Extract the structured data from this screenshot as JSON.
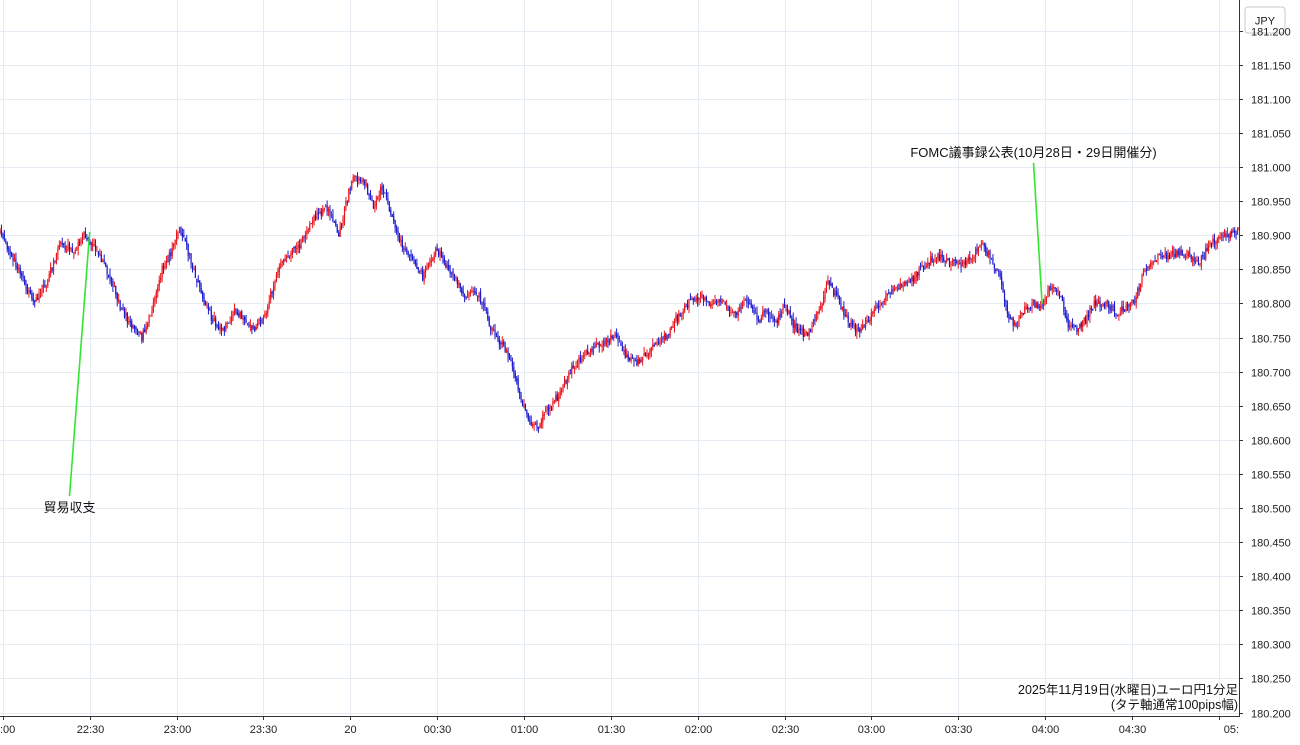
{
  "chart_data": {
    "type": "candlestick",
    "currency_label": "JPY",
    "caption_line1": "2025年11月19日(水曜日)ユーロ円1分足",
    "caption_line2": "(タテ軸通常100pips幅)",
    "ylim": [
      180.195,
      181.245
    ],
    "y_ticks": [
      181.2,
      181.15,
      181.1,
      181.05,
      181.0,
      180.95,
      180.9,
      180.85,
      180.8,
      180.75,
      180.7,
      180.65,
      180.6,
      180.55,
      180.5,
      180.45,
      180.4,
      180.35,
      180.3,
      180.25,
      180.2
    ],
    "x_range_minutes": [
      -31,
      397
    ],
    "x_ticks": [
      {
        "label": ":00",
        "minute": -30
      },
      {
        "label": "22:30",
        "minute": 0
      },
      {
        "label": "23:00",
        "minute": 30
      },
      {
        "label": "23:30",
        "minute": 60
      },
      {
        "label": "20",
        "minute": 90
      },
      {
        "label": "00:30",
        "minute": 120
      },
      {
        "label": "01:00",
        "minute": 150
      },
      {
        "label": "01:30",
        "minute": 180
      },
      {
        "label": "02:00",
        "minute": 210
      },
      {
        "label": "02:30",
        "minute": 240
      },
      {
        "label": "03:00",
        "minute": 270
      },
      {
        "label": "03:30",
        "minute": 300
      },
      {
        "label": "04:00",
        "minute": 330
      },
      {
        "label": "04:30",
        "minute": 360
      },
      {
        "label": "05:",
        "minute": 390
      }
    ],
    "colors": {
      "up": "#e8141c",
      "down": "#1a1acc",
      "grid": "#e4ebf2",
      "axis": "#333333",
      "annotation_line": "#33e633"
    },
    "annotations": [
      {
        "label": "貿易収支",
        "minute": 0,
        "price": 180.905,
        "label_price": 180.5,
        "label_minute": -7
      },
      {
        "label": "FOMC議事録公表(10月28日・29日開催分)",
        "minute": 329,
        "price": 180.8,
        "label_price": 181.015,
        "label_minute": 326
      }
    ],
    "close_waypoints": [
      [
        -31,
        180.905
      ],
      [
        -27,
        180.87
      ],
      [
        -23,
        180.835
      ],
      [
        -19,
        180.8
      ],
      [
        -15,
        180.83
      ],
      [
        -10,
        180.89
      ],
      [
        -6,
        180.875
      ],
      [
        -2,
        180.9
      ],
      [
        0,
        180.895
      ],
      [
        3,
        180.875
      ],
      [
        7,
        180.84
      ],
      [
        10,
        180.8
      ],
      [
        14,
        180.77
      ],
      [
        18,
        180.75
      ],
      [
        22,
        180.8
      ],
      [
        25,
        180.85
      ],
      [
        28,
        180.875
      ],
      [
        31,
        180.91
      ],
      [
        34,
        180.875
      ],
      [
        38,
        180.82
      ],
      [
        42,
        180.78
      ],
      [
        46,
        180.76
      ],
      [
        50,
        180.79
      ],
      [
        54,
        180.775
      ],
      [
        57,
        180.76
      ],
      [
        61,
        180.79
      ],
      [
        64,
        180.835
      ],
      [
        67,
        180.865
      ],
      [
        70,
        180.875
      ],
      [
        73,
        180.89
      ],
      [
        77,
        180.925
      ],
      [
        82,
        180.94
      ],
      [
        86,
        180.9
      ],
      [
        89,
        180.955
      ],
      [
        91,
        180.985
      ],
      [
        95,
        180.975
      ],
      [
        98,
        180.94
      ],
      [
        101,
        180.97
      ],
      [
        104,
        180.93
      ],
      [
        108,
        180.885
      ],
      [
        112,
        180.86
      ],
      [
        115,
        180.84
      ],
      [
        120,
        180.88
      ],
      [
        123,
        180.855
      ],
      [
        126,
        180.84
      ],
      [
        130,
        180.805
      ],
      [
        133,
        180.82
      ],
      [
        136,
        180.8
      ],
      [
        139,
        180.76
      ],
      [
        143,
        180.735
      ],
      [
        146,
        180.71
      ],
      [
        149,
        180.66
      ],
      [
        152,
        180.625
      ],
      [
        155,
        180.62
      ],
      [
        158,
        180.645
      ],
      [
        162,
        180.665
      ],
      [
        166,
        180.7
      ],
      [
        170,
        180.72
      ],
      [
        174,
        180.735
      ],
      [
        178,
        180.745
      ],
      [
        182,
        180.755
      ],
      [
        185,
        180.725
      ],
      [
        189,
        180.71
      ],
      [
        193,
        180.73
      ],
      [
        198,
        180.745
      ],
      [
        203,
        180.78
      ],
      [
        207,
        180.8
      ],
      [
        211,
        180.81
      ],
      [
        215,
        180.8
      ],
      [
        219,
        180.8
      ],
      [
        223,
        180.785
      ],
      [
        227,
        180.805
      ],
      [
        231,
        180.775
      ],
      [
        234,
        180.79
      ],
      [
        237,
        180.77
      ],
      [
        240,
        180.8
      ],
      [
        244,
        180.76
      ],
      [
        248,
        180.755
      ],
      [
        252,
        180.79
      ],
      [
        255,
        180.83
      ],
      [
        258,
        180.81
      ],
      [
        261,
        180.78
      ],
      [
        265,
        180.76
      ],
      [
        268,
        180.77
      ],
      [
        271,
        180.79
      ],
      [
        274,
        180.8
      ],
      [
        277,
        180.82
      ],
      [
        281,
        180.825
      ],
      [
        285,
        180.84
      ],
      [
        289,
        180.86
      ],
      [
        293,
        180.87
      ],
      [
        297,
        180.86
      ],
      [
        301,
        180.855
      ],
      [
        305,
        180.87
      ],
      [
        308,
        180.885
      ],
      [
        311,
        180.87
      ],
      [
        314,
        180.845
      ],
      [
        317,
        180.785
      ],
      [
        320,
        180.765
      ],
      [
        323,
        180.795
      ],
      [
        326,
        180.8
      ],
      [
        329,
        180.795
      ],
      [
        332,
        180.825
      ],
      [
        335,
        180.815
      ],
      [
        338,
        180.77
      ],
      [
        341,
        180.765
      ],
      [
        344,
        180.775
      ],
      [
        347,
        180.8
      ],
      [
        351,
        180.8
      ],
      [
        355,
        180.785
      ],
      [
        358,
        180.795
      ],
      [
        361,
        180.805
      ],
      [
        364,
        180.845
      ],
      [
        368,
        180.865
      ],
      [
        372,
        180.87
      ],
      [
        376,
        180.875
      ],
      [
        380,
        180.87
      ],
      [
        383,
        180.86
      ],
      [
        387,
        180.885
      ],
      [
        391,
        180.9
      ],
      [
        394,
        180.9
      ],
      [
        397,
        180.91
      ]
    ]
  }
}
